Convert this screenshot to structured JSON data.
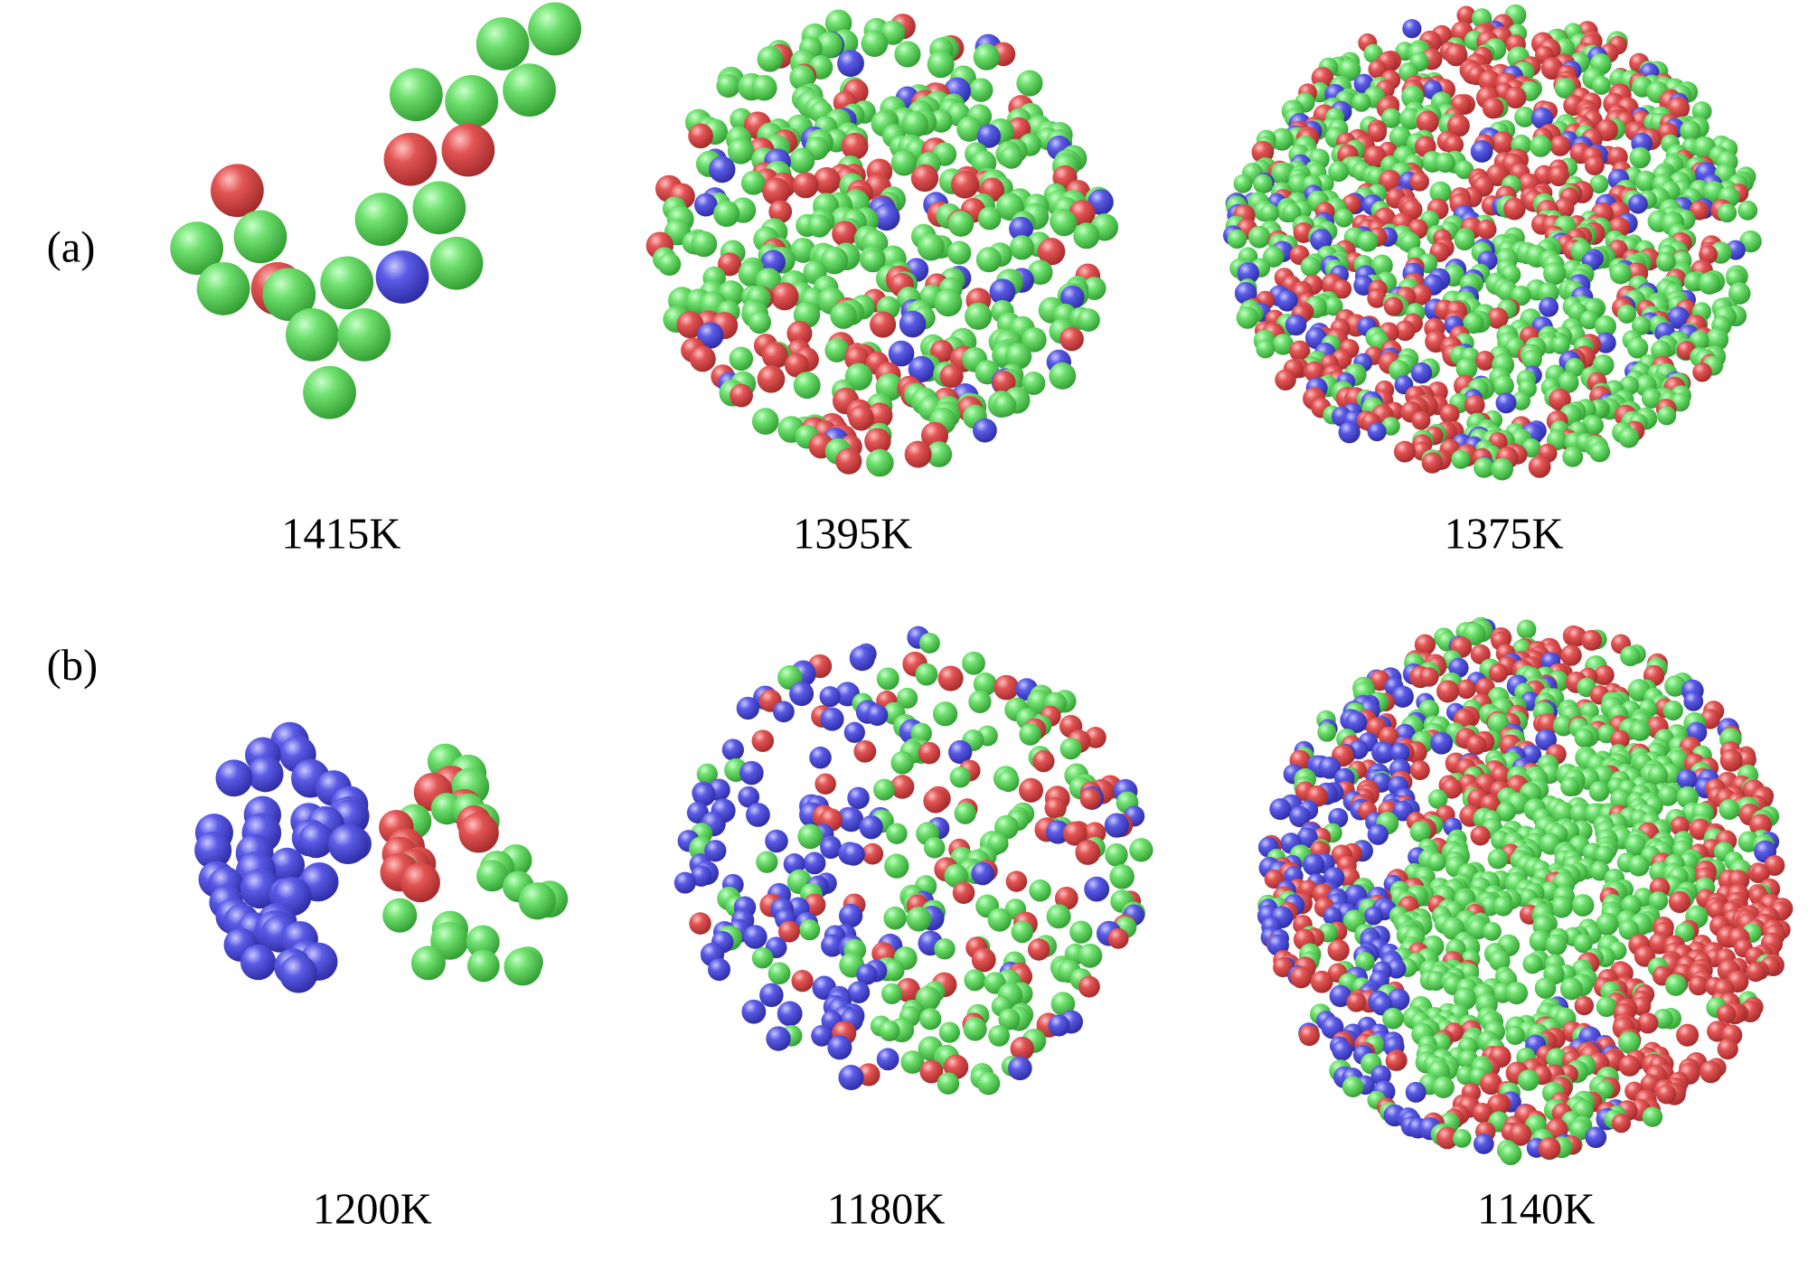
{
  "rows": [
    {
      "label": "(a)",
      "captions": [
        "1415K",
        "1395K",
        "1375K"
      ]
    },
    {
      "label": "(b)",
      "captions": [
        "1200K",
        "1180K",
        "1140K"
      ]
    }
  ]
}
